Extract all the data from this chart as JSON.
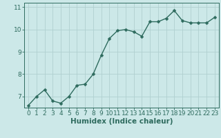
{
  "x": [
    0,
    1,
    2,
    3,
    4,
    5,
    6,
    7,
    8,
    9,
    10,
    11,
    12,
    13,
    14,
    15,
    16,
    17,
    18,
    19,
    20,
    21,
    22,
    23
  ],
  "y": [
    6.6,
    7.0,
    7.3,
    6.8,
    6.7,
    7.0,
    7.5,
    7.55,
    8.0,
    8.85,
    9.6,
    9.95,
    10.0,
    9.9,
    9.7,
    10.35,
    10.35,
    10.5,
    10.85,
    10.4,
    10.3,
    10.3,
    10.3,
    10.55
  ],
  "xlabel": "Humidex (Indice chaleur)",
  "xlim_left": -0.5,
  "xlim_right": 23.5,
  "ylim": [
    6.5,
    11.2
  ],
  "yticks": [
    7,
    8,
    9,
    10,
    11
  ],
  "xticks": [
    0,
    1,
    2,
    3,
    4,
    5,
    6,
    7,
    8,
    9,
    10,
    11,
    12,
    13,
    14,
    15,
    16,
    17,
    18,
    19,
    20,
    21,
    22,
    23
  ],
  "line_color": "#2e6b5e",
  "marker_color": "#2e6b5e",
  "bg_color": "#cce8e8",
  "grid_color": "#b0d0d0",
  "axis_color": "#2e6b5e",
  "label_color": "#2e6b5e",
  "font_size_xlabel": 7.5,
  "font_size_ticks": 6.5,
  "marker_size": 2.5,
  "line_width": 1.0
}
